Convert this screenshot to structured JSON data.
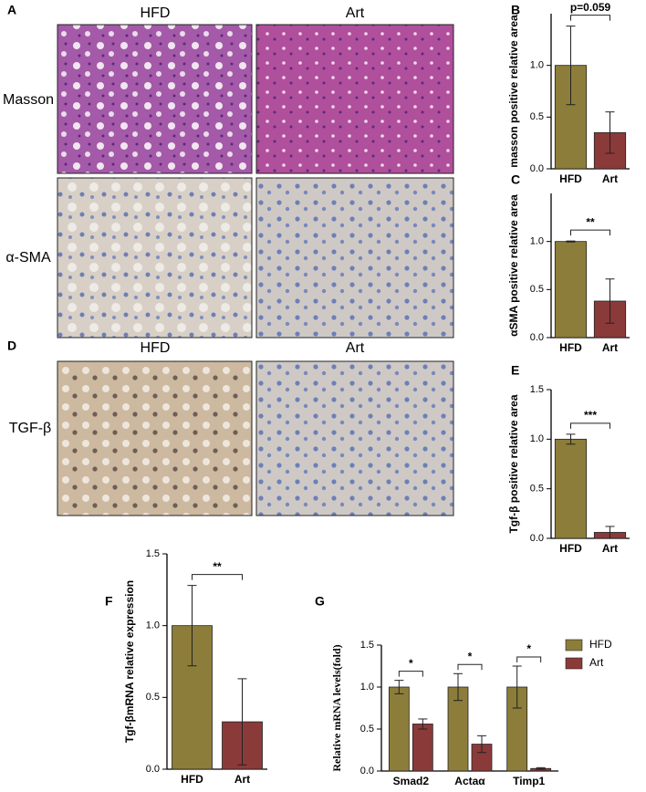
{
  "figure": {
    "panel_A": {
      "label": "A",
      "columns": [
        "HFD",
        "Art"
      ],
      "rows": [
        "Masson",
        "α-SMA"
      ]
    },
    "panel_D": {
      "label": "D",
      "columns": [
        "HFD",
        "Art"
      ],
      "rows": [
        "TGF-β"
      ]
    }
  },
  "chart_data": [
    {
      "type": "bar",
      "panel_label": "B",
      "ylabel": "masson positive relative area",
      "categories": [
        "HFD",
        "Art"
      ],
      "values": [
        1.0,
        0.35
      ],
      "errors": [
        0.38,
        0.2
      ],
      "colors": [
        "#8c7d3a",
        "#8b3a3a"
      ],
      "annotation": "p=0.059",
      "ylim": [
        0,
        1.5
      ],
      "yticks": [
        {
          "value": 0,
          "label": "0.0"
        },
        0.5,
        {
          "value": 1,
          "label": "1.0"
        }
      ]
    },
    {
      "type": "bar",
      "panel_label": "C",
      "ylabel": "αSMA positive relative area",
      "categories": [
        "HFD",
        "Art"
      ],
      "values": [
        1.0,
        0.38
      ],
      "errors": [
        0.005,
        0.23
      ],
      "colors": [
        "#8c7d3a",
        "#8b3a3a"
      ],
      "annotation": "**",
      "ylim": [
        0,
        1.5
      ],
      "yticks": [
        {
          "value": 0,
          "label": "0.0"
        },
        0.5,
        {
          "value": 1,
          "label": "1.0"
        }
      ]
    },
    {
      "type": "bar",
      "panel_label": "E",
      "ylabel": "Tgf-β positive relative area",
      "categories": [
        "HFD",
        "Art"
      ],
      "values": [
        1.0,
        0.06
      ],
      "errors": [
        0.05,
        0.06
      ],
      "colors": [
        "#8c7d3a",
        "#8b3a3a"
      ],
      "annotation": "***",
      "ylim": [
        0,
        1.5
      ],
      "yticks": [
        {
          "value": 0,
          "label": "0.0"
        },
        0.5,
        {
          "value": 1,
          "label": "1.0"
        },
        {
          "value": 1.5,
          "label": "1.5"
        }
      ]
    },
    {
      "type": "bar",
      "panel_label": "F",
      "ylabel": "Tgf-βmRNA relative expression",
      "categories": [
        "HFD",
        "Art"
      ],
      "values": [
        1.0,
        0.33
      ],
      "errors": [
        0.28,
        0.3
      ],
      "colors": [
        "#8c7d3a",
        "#8b3a3a"
      ],
      "annotation": "**",
      "ylim": [
        0,
        1.5
      ],
      "yticks": [
        {
          "value": 0,
          "label": "0.0"
        },
        0.5,
        {
          "value": 1,
          "label": "1.0"
        },
        {
          "value": 1.5,
          "label": "1.5"
        }
      ]
    },
    {
      "type": "grouped_bar",
      "panel_label": "G",
      "ylabel": "Relative mRNA levels(fold)",
      "categories": [
        "Smad2",
        "Actaα",
        "Timp1"
      ],
      "series": [
        {
          "name": "HFD",
          "color": "#8c7d3a",
          "values": [
            1.0,
            1.0,
            1.0
          ],
          "errors": [
            0.08,
            0.16,
            0.25
          ]
        },
        {
          "name": "Art",
          "color": "#8b3a3a",
          "values": [
            0.56,
            0.32,
            0.03
          ],
          "errors": [
            0.06,
            0.1,
            0.01
          ]
        }
      ],
      "annotations": [
        "*",
        "*",
        "*"
      ],
      "legend": "upper right",
      "ylim": [
        0,
        1.5
      ],
      "yticks": [
        {
          "value": 0,
          "label": "0.0"
        },
        0.5,
        {
          "value": 1,
          "label": "1.0"
        },
        {
          "value": 1.5,
          "label": "1.5"
        }
      ]
    }
  ]
}
